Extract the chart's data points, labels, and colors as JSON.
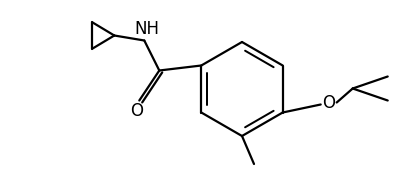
{
  "background": "#ffffff",
  "line_color": "#000000",
  "line_width": 1.6,
  "fig_width": 3.97,
  "fig_height": 1.82,
  "dpi": 100,
  "text_NH": "NH",
  "text_O_ketone": "O",
  "text_O_ether": "O"
}
